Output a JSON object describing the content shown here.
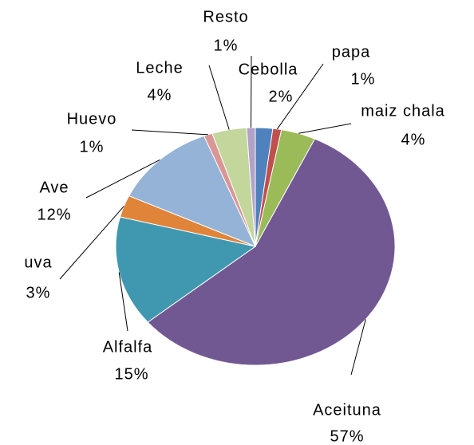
{
  "chart_data": {
    "type": "pie",
    "categories": [
      "Cebolla",
      "papa",
      "maiz chala",
      "Aceituna",
      "Alfalfa",
      "uva",
      "Ave",
      "Huevo",
      "Leche",
      "Resto"
    ],
    "values": [
      2,
      1,
      4,
      57,
      15,
      3,
      12,
      1,
      4,
      1
    ],
    "value_labels": [
      "2%",
      "1%",
      "4%",
      "57%",
      "15%",
      "3%",
      "12%",
      "1%",
      "4%",
      "1%"
    ],
    "colors": [
      "#4f81bd",
      "#c0504d",
      "#9bbb59",
      "#725893",
      "#4098b0",
      "#e0843a",
      "#95b3d7",
      "#d99694",
      "#c3d69b",
      "#b3a2c7"
    ]
  }
}
